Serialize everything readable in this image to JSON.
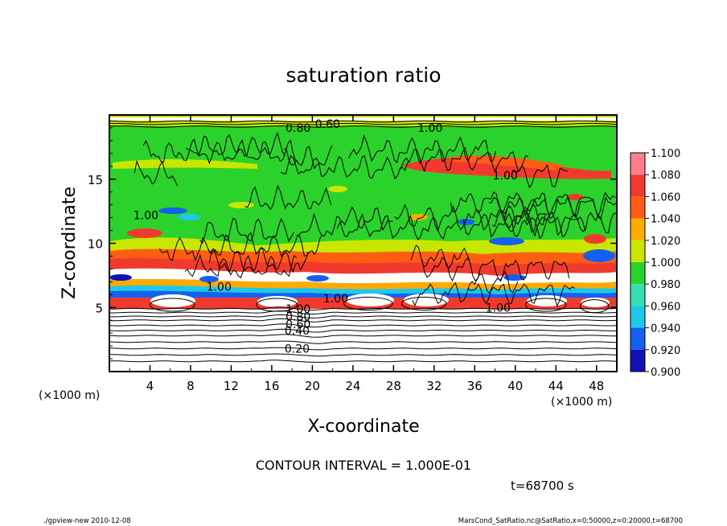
{
  "chart_data": {
    "type": "heatmap",
    "title": "saturation ratio",
    "xlabel": "X-coordinate",
    "ylabel": "Z-coordinate",
    "x_unit_left": "(×1000 m)",
    "x_unit_right": "(×1000 m)",
    "xlim": [
      0,
      50
    ],
    "ylim": [
      0,
      20
    ],
    "x_ticks": [
      "4",
      "8",
      "12",
      "16",
      "20",
      "24",
      "28",
      "32",
      "36",
      "40",
      "44",
      "48"
    ],
    "x_tick_values": [
      4,
      8,
      12,
      16,
      20,
      24,
      28,
      32,
      36,
      40,
      44,
      48
    ],
    "y_ticks": [
      "5",
      "10",
      "15"
    ],
    "y_tick_values": [
      5,
      10,
      15
    ],
    "colorbar": {
      "labels": [
        "1.100",
        "1.080",
        "1.060",
        "1.040",
        "1.020",
        "1.000",
        "0.980",
        "0.960",
        "0.940",
        "0.920",
        "0.900"
      ],
      "colors": [
        "#ff7f8c",
        "#f03a2e",
        "#ff5d14",
        "#ffaa00",
        "#c8e600",
        "#2bd22b",
        "#35e0b0",
        "#1ec8e8",
        "#1560f0",
        "#1010b4",
        "#5a18a8"
      ]
    },
    "contour_labels": [
      {
        "text": "0.20",
        "x": 18.5,
        "z": 1.8
      },
      {
        "text": "0.40",
        "x": 18.5,
        "z": 3.2
      },
      {
        "text": "0.60",
        "x": 18.6,
        "z": 3.7
      },
      {
        "text": "0.80",
        "x": 18.6,
        "z": 4.3
      },
      {
        "text": "1.00",
        "x": 18.6,
        "z": 4.9
      },
      {
        "text": "1.00",
        "x": 10.8,
        "z": 6.6
      },
      {
        "text": "1.00",
        "x": 22.3,
        "z": 5.7
      },
      {
        "text": "1.00",
        "x": 38.3,
        "z": 5.0
      },
      {
        "text": "1.00",
        "x": 3.6,
        "z": 12.2
      },
      {
        "text": "1.00",
        "x": 39.0,
        "z": 15.3
      },
      {
        "text": "0.60",
        "x": 21.5,
        "z": 19.3
      },
      {
        "text": "0.80",
        "x": 18.6,
        "z": 19.0
      },
      {
        "text": "1.00",
        "x": 31.6,
        "z": 19.0
      }
    ],
    "cloud_regions_dry_below_z": 5,
    "grid": false
  },
  "contour_interval_text": "CONTOUR INTERVAL = 1.000E-01",
  "time_text": "t=68700 s",
  "footer_left": "./gpview-new   2010-12-08",
  "footer_right": "MarsCond_SatRatio.nc@SatRatio,x=0:50000,z=0:20000,t=68700"
}
